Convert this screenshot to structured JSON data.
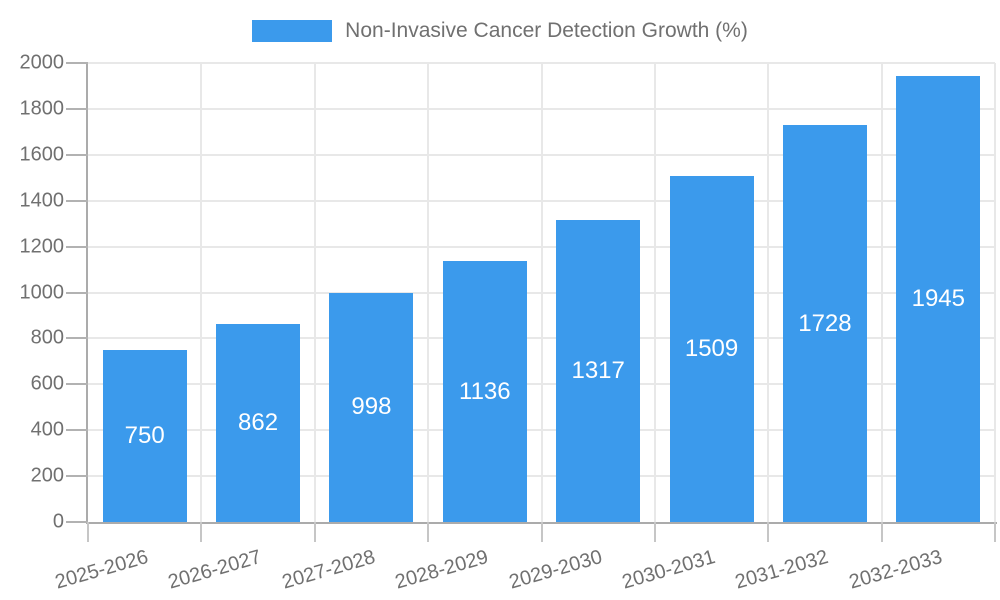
{
  "legend": {
    "label": "Non-Invasive Cancer Detection Growth (%)"
  },
  "colors": {
    "bar": "#3b9aec",
    "axis": "#ababab",
    "grid": "#e8e8e8",
    "tick": "#c6c6c6",
    "text": "#707070",
    "value_label": "#ffffff",
    "background": "#ffffff"
  },
  "chart_data": {
    "type": "bar",
    "title": "Non-Invasive Cancer Detection Growth (%)",
    "series_name": "Non-Invasive Cancer Detection Growth (%)",
    "categories": [
      "2025-2026",
      "2026-2027",
      "2027-2028",
      "2028-2029",
      "2029-2030",
      "2030-2031",
      "2031-2032",
      "2032-2033"
    ],
    "values": [
      750,
      862,
      998,
      1136,
      1317,
      1509,
      1728,
      1945
    ],
    "xlabel": "",
    "ylabel": "",
    "ylim": [
      0,
      2000
    ],
    "y_ticks": [
      0,
      200,
      400,
      600,
      800,
      1000,
      1200,
      1400,
      1600,
      1800,
      2000
    ],
    "grid": true,
    "legend_position": "top-center",
    "value_labels": "inside-center",
    "x_tick_rotation": -16
  }
}
